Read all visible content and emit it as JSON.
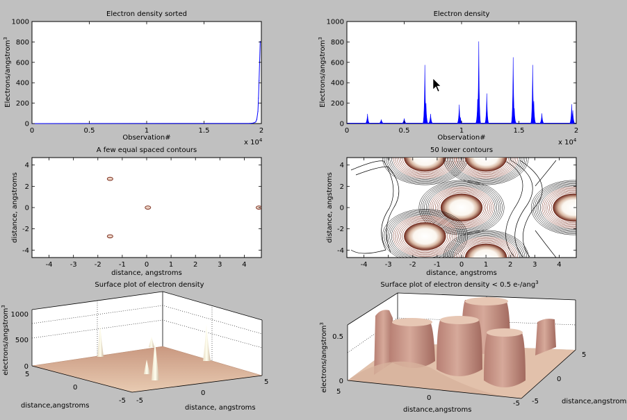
{
  "chart_data": [
    {
      "id": "sorted",
      "type": "line",
      "title": "Electron density sorted",
      "xlabel": "Observation#",
      "ylabel": "Electrons/angstrom",
      "ylabel_sup": "3",
      "xlim": [
        0,
        2
      ],
      "ylim": [
        0,
        1000
      ],
      "xticks": [
        "0",
        "0.5",
        "1",
        "1.5",
        "2"
      ],
      "yticks": [
        "0",
        "200",
        "400",
        "600",
        "800",
        "1000"
      ],
      "x_exponent": "x 10",
      "x_exponent_sup": "4",
      "color": "#0000ff",
      "x": [
        0,
        1.9,
        1.93,
        1.95,
        1.96,
        1.97,
        1.975,
        1.98,
        1.99
      ],
      "y": [
        0,
        2,
        5,
        15,
        40,
        120,
        250,
        420,
        805
      ]
    },
    {
      "id": "density",
      "type": "line",
      "title": "Electron density",
      "xlabel": "Observation#",
      "ylabel": "Electrons/angstrom",
      "ylabel_sup": "3",
      "xlim": [
        0,
        2
      ],
      "ylim": [
        0,
        1000
      ],
      "xticks": [
        "0",
        "0.5",
        "1",
        "1.5",
        "2"
      ],
      "yticks": [
        "0",
        "200",
        "400",
        "600",
        "800",
        "1000"
      ],
      "x_exponent": "x 10",
      "x_exponent_sup": "4",
      "color": "#0000ff",
      "peaks": [
        {
          "x": 0.18,
          "y": 95
        },
        {
          "x": 0.3,
          "y": 40
        },
        {
          "x": 0.5,
          "y": 50
        },
        {
          "x": 0.68,
          "y": 575
        },
        {
          "x": 0.69,
          "y": 200
        },
        {
          "x": 0.73,
          "y": 95
        },
        {
          "x": 0.98,
          "y": 185
        },
        {
          "x": 0.99,
          "y": 60
        },
        {
          "x": 1.15,
          "y": 805
        },
        {
          "x": 1.14,
          "y": 240
        },
        {
          "x": 1.22,
          "y": 295
        },
        {
          "x": 1.45,
          "y": 650
        },
        {
          "x": 1.46,
          "y": 150
        },
        {
          "x": 1.62,
          "y": 575
        },
        {
          "x": 1.63,
          "y": 220
        },
        {
          "x": 1.7,
          "y": 100
        },
        {
          "x": 1.96,
          "y": 190
        },
        {
          "x": 1.97,
          "y": 130
        }
      ]
    },
    {
      "id": "contour-few",
      "type": "contour",
      "title": "A few equal spaced contours",
      "xlabel": "distance, angstroms",
      "ylabel": "distance, angstroms",
      "xlim": [
        -4.7,
        4.7
      ],
      "ylim": [
        -4.7,
        4.7
      ],
      "xticks": [
        "-4",
        "-3",
        "-2",
        "-1",
        "0",
        "1",
        "2",
        "3",
        "4"
      ],
      "yticks": [
        "-4",
        "-2",
        "0",
        "2",
        "4"
      ],
      "centers": [
        {
          "x": -1.5,
          "y": 2.7
        },
        {
          "x": 0.05,
          "y": 0
        },
        {
          "x": -1.5,
          "y": -2.7
        },
        {
          "x": 4.6,
          "y": 0
        }
      ]
    },
    {
      "id": "contour-lower",
      "type": "contour",
      "title": "50 lower contours",
      "xlabel": "distance, angstroms",
      "ylabel": "distance, angstroms",
      "xlim": [
        -4.7,
        4.7
      ],
      "ylim": [
        -4.7,
        4.7
      ],
      "xticks": [
        "-4",
        "-3",
        "-2",
        "-1",
        "0",
        "1",
        "2",
        "3",
        "4"
      ],
      "yticks": [
        "-4",
        "-2",
        "0",
        "2",
        "4"
      ],
      "centers": [
        {
          "x": -1.5,
          "y": 4.7
        },
        {
          "x": 0,
          "y": 0
        },
        {
          "x": -1.5,
          "y": -2.7
        },
        {
          "x": 4.6,
          "y": 0
        },
        {
          "x": 1.0,
          "y": 4.7
        },
        {
          "x": 1.0,
          "y": -4.7
        }
      ]
    },
    {
      "id": "surface-full",
      "type": "surface",
      "title": "Surface plot of electron density",
      "zlabel": "electrons/angstrom",
      "zlabel_sup": "3",
      "xlabel": "distance,angstroms",
      "ylabel": "distance, angstroms",
      "zticks": [
        "0",
        "500",
        "1000"
      ],
      "xticks": [
        "5",
        "0",
        "-5"
      ],
      "yticks": [
        "-5",
        "0",
        "5"
      ]
    },
    {
      "id": "surface-lower",
      "type": "surface",
      "title": "Surface plot of electron density < 0.5 e-/ang",
      "title_sup": "3",
      "zlabel": "electrons/angstrom",
      "zlabel_sup": "3",
      "xlabel": "distance,angstroms",
      "ylabel": "distance,angstroms",
      "zticks": [
        "0",
        "0.5"
      ],
      "xticks": [
        "5",
        "0",
        "-5"
      ],
      "yticks": [
        "-5",
        "0",
        "5"
      ]
    }
  ]
}
